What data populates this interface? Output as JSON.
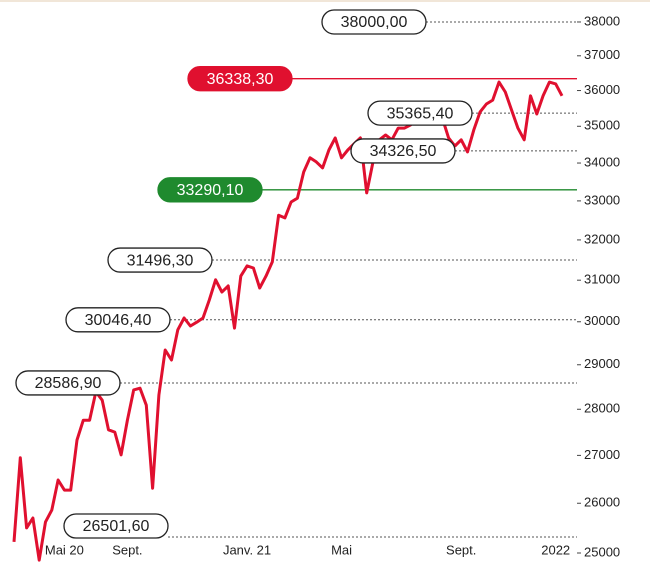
{
  "chart_data": {
    "type": "line",
    "color": "#e0102f",
    "scale": "log",
    "values": [
      25220,
      26950,
      25500,
      25700,
      24860,
      25620,
      25860,
      26480,
      26270,
      26270,
      27330,
      27760,
      27760,
      28390,
      28200,
      27550,
      27500,
      27010,
      27760,
      28430,
      28470,
      28090,
      26310,
      28320,
      29340,
      29110,
      29810,
      30090,
      29900,
      29990,
      30090,
      30520,
      31010,
      30710,
      30860,
      29850,
      31100,
      31350,
      31300,
      30810,
      31100,
      31450,
      32630,
      32560,
      32970,
      33070,
      33760,
      34140,
      34030,
      33870,
      34350,
      34680,
      34140,
      34350,
      34520,
      34680,
      33210,
      34030,
      34630,
      34760,
      34630,
      34950,
      34950,
      35040,
      35450,
      35400,
      35590,
      35310,
      35230,
      34680,
      34460,
      34630,
      34300,
      34900,
      35400,
      35620,
      35730,
      36240,
      35960,
      35450,
      34950,
      34630,
      35850,
      35340,
      35850,
      36240,
      36190,
      35850
    ],
    "xlim": [
      0,
      87
    ],
    "xticks": [
      {
        "value": 8,
        "label": "Mai 20"
      },
      {
        "value": 18,
        "label": "Sept."
      },
      {
        "value": 37,
        "label": "Janv. 21"
      },
      {
        "value": 52,
        "label": "Mai"
      },
      {
        "value": 71,
        "label": "Sept."
      },
      {
        "value": 86,
        "label": "2022"
      }
    ],
    "ylim": [
      24700,
      38500
    ],
    "yticks": [
      25000,
      26000,
      27000,
      28000,
      29000,
      30000,
      31000,
      32000,
      33000,
      34000,
      35000,
      36000,
      37000,
      38000
    ],
    "levels": [
      {
        "value": 38000,
        "label": "38000,00",
        "style": "dotted"
      },
      {
        "value": 36338.3,
        "label": "36338,30",
        "style": "solid",
        "color": "#e0102f"
      },
      {
        "value": 35365.4,
        "label": "35365,40",
        "style": "dotted"
      },
      {
        "value": 34326.5,
        "label": "34326,50",
        "style": "dotted"
      },
      {
        "value": 33290.1,
        "label": "33290,10",
        "style": "solid",
        "color": "#1f8a2e"
      },
      {
        "value": 31496.3,
        "label": "31496,30",
        "style": "dotted"
      },
      {
        "value": 30046.4,
        "label": "30046,40",
        "style": "dotted"
      },
      {
        "value": 28586.9,
        "label": "28586,90",
        "style": "dotted"
      },
      {
        "value": 26501.6,
        "label": "26501,60",
        "style": "dotted"
      }
    ]
  }
}
